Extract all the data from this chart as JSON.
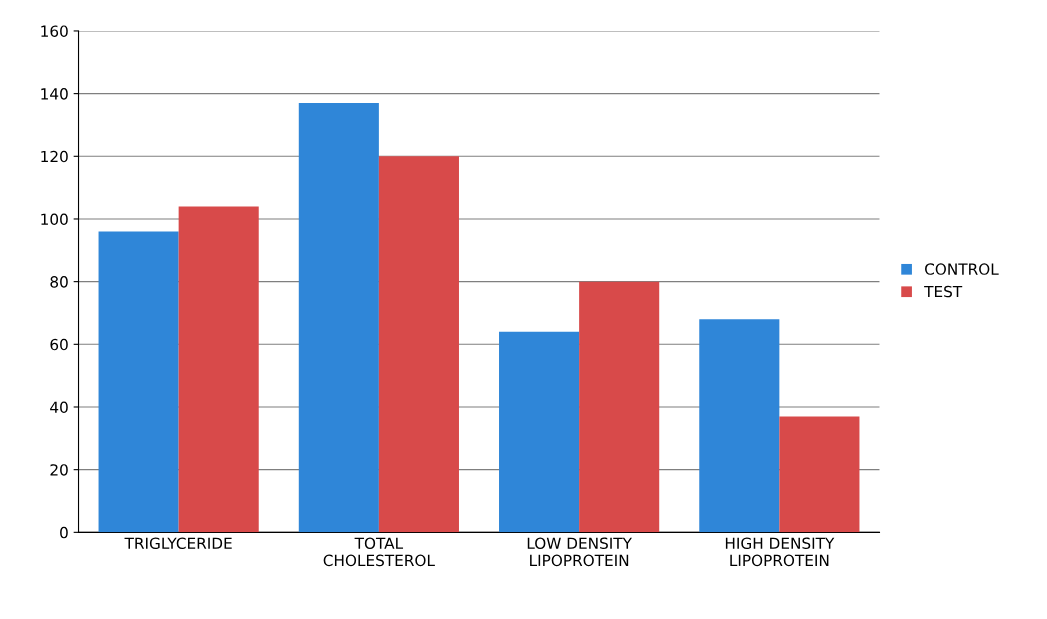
{
  "chart_data": {
    "type": "bar",
    "categories": [
      "TRIGLYCERIDE",
      "TOTAL\nCHOLESTEROL",
      "LOW DENSITY\nLIPOPROTEIN",
      "HIGH DENSITY\nLIPOPROTEIN"
    ],
    "series": [
      {
        "name": "CONTROL",
        "color": "#2f86d8",
        "values": [
          96,
          137,
          64,
          68
        ]
      },
      {
        "name": "TEST",
        "color": "#d84a4a",
        "values": [
          104,
          120,
          80,
          37
        ]
      }
    ],
    "ylim": [
      0,
      160
    ],
    "yticks": [
      0,
      20,
      40,
      60,
      80,
      100,
      120,
      140,
      160
    ],
    "grid": "y",
    "legend": "right"
  }
}
